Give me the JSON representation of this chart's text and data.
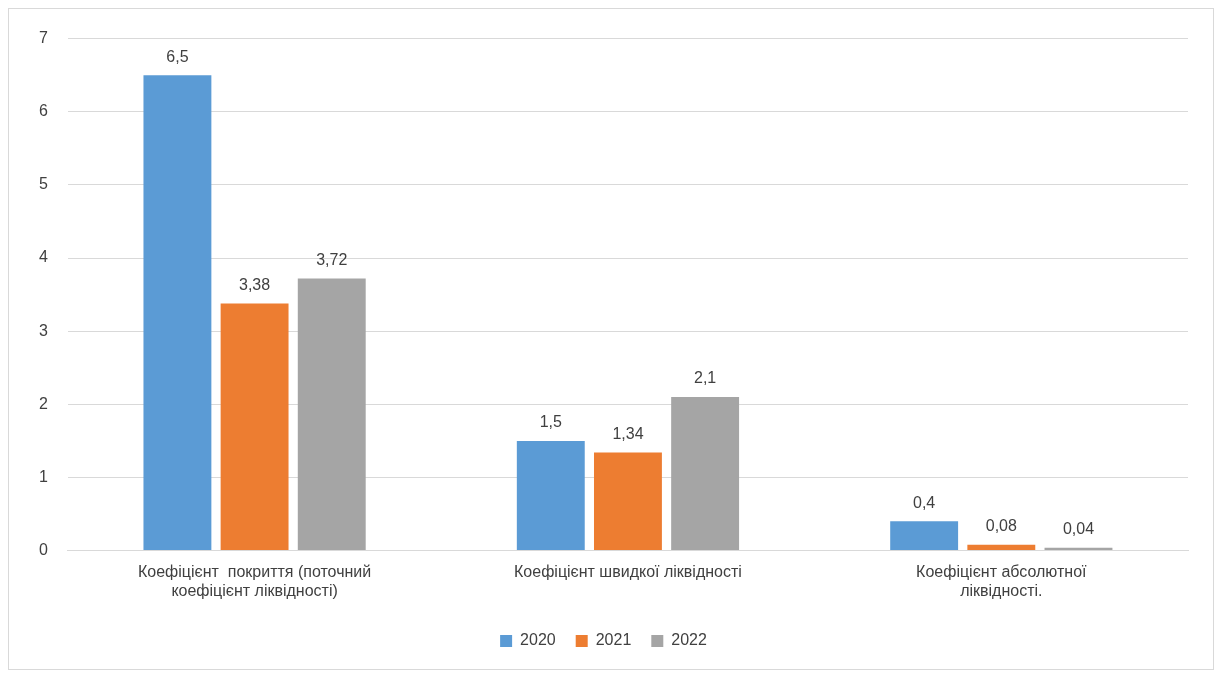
{
  "chart_data": {
    "type": "bar",
    "categories": [
      "Коефіцієнт  покриття (поточний коефіцієнт ліквідності)",
      "Коефіцієнт швидкої ліквідності",
      "Коефіцієнт абсолютної ліквідності."
    ],
    "series": [
      {
        "name": "2020",
        "color": "#5b9bd5",
        "values": [
          6.5,
          1.5,
          0.4
        ],
        "value_labels": [
          "6,5",
          "1,5",
          "0,4"
        ]
      },
      {
        "name": "2021",
        "color": "#ed7d31",
        "values": [
          3.38,
          1.34,
          0.08
        ],
        "value_labels": [
          "3,38",
          "1,34",
          "0,08"
        ]
      },
      {
        "name": "2022",
        "color": "#a5a5a5",
        "values": [
          3.72,
          2.1,
          0.04
        ],
        "value_labels": [
          "3,72",
          "2,1",
          "0,04"
        ]
      }
    ],
    "ylim": [
      0,
      7
    ],
    "yticks": [
      0,
      1,
      2,
      3,
      4,
      5,
      6,
      7
    ],
    "grid": "y",
    "legend": "bottom"
  }
}
